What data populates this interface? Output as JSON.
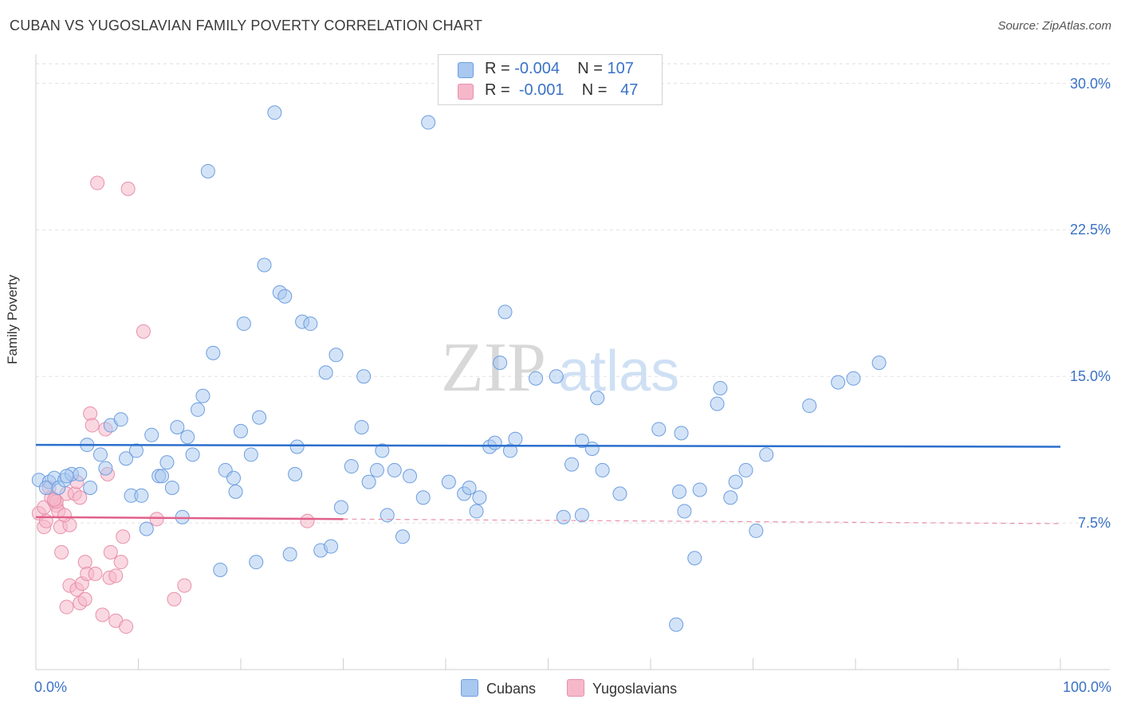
{
  "header": {
    "title": "CUBAN VS YUGOSLAVIAN FAMILY POVERTY CORRELATION CHART",
    "source": "Source: ZipAtlas.com"
  },
  "watermark": "ZIPatlas",
  "legend": {
    "rows": [
      {
        "r_label": "R =",
        "r_value": "-0.004",
        "n_label": "N =",
        "n_value": "107",
        "color": "#a8c8f0"
      },
      {
        "r_label": "R =",
        "r_value": "-0.001",
        "n_label": "N =",
        "n_value": "47",
        "color": "#f5b8cb"
      }
    ]
  },
  "colors": {
    "cubans_fill": "#a8c8f0",
    "cubans_stroke": "#6d9ee0",
    "cubans_line": "#2b6fcd",
    "yugo_fill": "#f5b8cb",
    "yugo_stroke": "#e890ab",
    "yugo_line": "#e0608a",
    "axis_label": "#3a72c7"
  },
  "chart_data": {
    "type": "scatter",
    "ylabel": "Family Poverty",
    "xlim": [
      0,
      100
    ],
    "ylim": [
      0,
      31
    ],
    "y_ticks": [
      {
        "value": 7.5,
        "label": "7.5%"
      },
      {
        "value": 15.0,
        "label": "15.0%"
      },
      {
        "value": 22.5,
        "label": "22.5%"
      },
      {
        "value": 30.0,
        "label": "30.0%"
      }
    ],
    "x_labels": [
      {
        "value": 0,
        "label": "0.0%"
      },
      {
        "value": 100,
        "label": "100.0%"
      }
    ],
    "grid": "horizontal dashed",
    "series": [
      {
        "name": "Cubans",
        "trend": {
          "x": [
            0,
            100
          ],
          "y": [
            11.5,
            11.4
          ]
        },
        "points": [
          [
            0.3,
            9.7
          ],
          [
            1.3,
            9.6
          ],
          [
            1.0,
            9.3
          ],
          [
            1.8,
            9.8
          ],
          [
            2.2,
            9.3
          ],
          [
            2.8,
            9.7
          ],
          [
            3.5,
            10.0
          ],
          [
            4.3,
            10.0
          ],
          [
            5.3,
            9.3
          ],
          [
            5.0,
            11.5
          ],
          [
            6.3,
            11.0
          ],
          [
            6.8,
            10.3
          ],
          [
            7.3,
            12.5
          ],
          [
            8.3,
            12.8
          ],
          [
            8.8,
            10.8
          ],
          [
            9.3,
            8.9
          ],
          [
            9.8,
            11.2
          ],
          [
            10.3,
            8.9
          ],
          [
            10.8,
            7.2
          ],
          [
            11.3,
            12.0
          ],
          [
            12.0,
            9.9
          ],
          [
            12.3,
            9.9
          ],
          [
            12.8,
            10.6
          ],
          [
            13.3,
            9.3
          ],
          [
            13.8,
            12.4
          ],
          [
            14.3,
            7.8
          ],
          [
            14.8,
            11.9
          ],
          [
            15.3,
            11.0
          ],
          [
            15.8,
            13.3
          ],
          [
            16.3,
            14.0
          ],
          [
            16.8,
            25.5
          ],
          [
            17.3,
            16.2
          ],
          [
            18.0,
            5.1
          ],
          [
            18.5,
            10.2
          ],
          [
            19.3,
            9.8
          ],
          [
            19.5,
            9.1
          ],
          [
            20.0,
            12.2
          ],
          [
            20.3,
            17.7
          ],
          [
            21.0,
            11.0
          ],
          [
            21.5,
            5.5
          ],
          [
            21.8,
            12.9
          ],
          [
            22.3,
            20.7
          ],
          [
            23.3,
            28.5
          ],
          [
            23.8,
            19.3
          ],
          [
            24.3,
            19.1
          ],
          [
            24.8,
            5.9
          ],
          [
            25.3,
            10.0
          ],
          [
            25.5,
            11.4
          ],
          [
            26.0,
            17.8
          ],
          [
            26.8,
            17.7
          ],
          [
            27.8,
            6.1
          ],
          [
            28.3,
            15.2
          ],
          [
            28.8,
            6.3
          ],
          [
            29.3,
            16.1
          ],
          [
            29.8,
            8.3
          ],
          [
            30.8,
            10.4
          ],
          [
            31.8,
            12.4
          ],
          [
            32.0,
            15.0
          ],
          [
            32.5,
            9.6
          ],
          [
            33.3,
            10.2
          ],
          [
            33.8,
            11.2
          ],
          [
            34.3,
            7.9
          ],
          [
            35.0,
            10.2
          ],
          [
            35.8,
            6.8
          ],
          [
            36.5,
            9.9
          ],
          [
            37.8,
            8.8
          ],
          [
            38.3,
            28.0
          ],
          [
            40.3,
            9.6
          ],
          [
            41.8,
            9.0
          ],
          [
            42.3,
            9.3
          ],
          [
            43.0,
            8.1
          ],
          [
            43.3,
            8.8
          ],
          [
            44.3,
            11.4
          ],
          [
            44.8,
            11.6
          ],
          [
            45.3,
            15.7
          ],
          [
            45.8,
            18.3
          ],
          [
            46.3,
            11.2
          ],
          [
            48.8,
            14.9
          ],
          [
            50.8,
            15.0
          ],
          [
            51.5,
            7.8
          ],
          [
            52.3,
            10.5
          ],
          [
            53.3,
            7.9
          ],
          [
            53.3,
            11.7
          ],
          [
            54.3,
            11.3
          ],
          [
            54.8,
            13.9
          ],
          [
            55.3,
            10.2
          ],
          [
            57.0,
            9.0
          ],
          [
            60.8,
            12.3
          ],
          [
            62.8,
            9.1
          ],
          [
            63.3,
            8.1
          ],
          [
            63.0,
            12.1
          ],
          [
            64.3,
            5.7
          ],
          [
            64.8,
            9.2
          ],
          [
            66.8,
            14.4
          ],
          [
            67.8,
            8.8
          ],
          [
            68.3,
            9.6
          ],
          [
            69.3,
            10.2
          ],
          [
            70.3,
            7.1
          ],
          [
            71.3,
            11.0
          ],
          [
            75.5,
            13.5
          ],
          [
            78.3,
            14.7
          ],
          [
            79.8,
            14.9
          ],
          [
            82.3,
            15.7
          ],
          [
            62.5,
            2.3
          ],
          [
            66.5,
            13.6
          ],
          [
            46.8,
            11.8
          ],
          [
            3.0,
            9.9
          ]
        ]
      },
      {
        "name": "Yugoslavians",
        "trend": {
          "x": [
            0,
            30
          ],
          "y": [
            7.8,
            7.7
          ]
        },
        "points": [
          [
            0.3,
            8.0
          ],
          [
            0.8,
            8.3
          ],
          [
            0.8,
            7.3
          ],
          [
            1.0,
            7.6
          ],
          [
            1.3,
            9.3
          ],
          [
            1.8,
            8.6
          ],
          [
            2.0,
            8.4
          ],
          [
            2.2,
            8.1
          ],
          [
            2.4,
            7.3
          ],
          [
            2.5,
            6.0
          ],
          [
            3.0,
            9.0
          ],
          [
            3.0,
            3.2
          ],
          [
            3.3,
            7.4
          ],
          [
            3.3,
            4.3
          ],
          [
            3.8,
            9.0
          ],
          [
            4.0,
            9.6
          ],
          [
            4.0,
            4.1
          ],
          [
            4.3,
            3.4
          ],
          [
            4.5,
            4.4
          ],
          [
            4.8,
            3.6
          ],
          [
            4.8,
            5.5
          ],
          [
            5.0,
            4.9
          ],
          [
            5.3,
            13.1
          ],
          [
            5.5,
            12.5
          ],
          [
            5.8,
            4.9
          ],
          [
            6.0,
            24.9
          ],
          [
            6.5,
            2.8
          ],
          [
            6.8,
            12.3
          ],
          [
            7.0,
            10.0
          ],
          [
            7.2,
            4.7
          ],
          [
            7.3,
            6.0
          ],
          [
            7.8,
            2.5
          ],
          [
            7.8,
            4.8
          ],
          [
            8.3,
            5.5
          ],
          [
            8.5,
            6.8
          ],
          [
            8.8,
            2.2
          ],
          [
            9.0,
            24.6
          ],
          [
            10.5,
            17.3
          ],
          [
            11.8,
            7.7
          ],
          [
            13.5,
            3.6
          ],
          [
            14.5,
            4.3
          ],
          [
            26.5,
            7.6
          ],
          [
            1.5,
            8.8
          ],
          [
            2.0,
            8.6
          ],
          [
            1.8,
            8.7
          ],
          [
            2.8,
            7.9
          ],
          [
            4.3,
            8.8
          ]
        ]
      }
    ]
  }
}
